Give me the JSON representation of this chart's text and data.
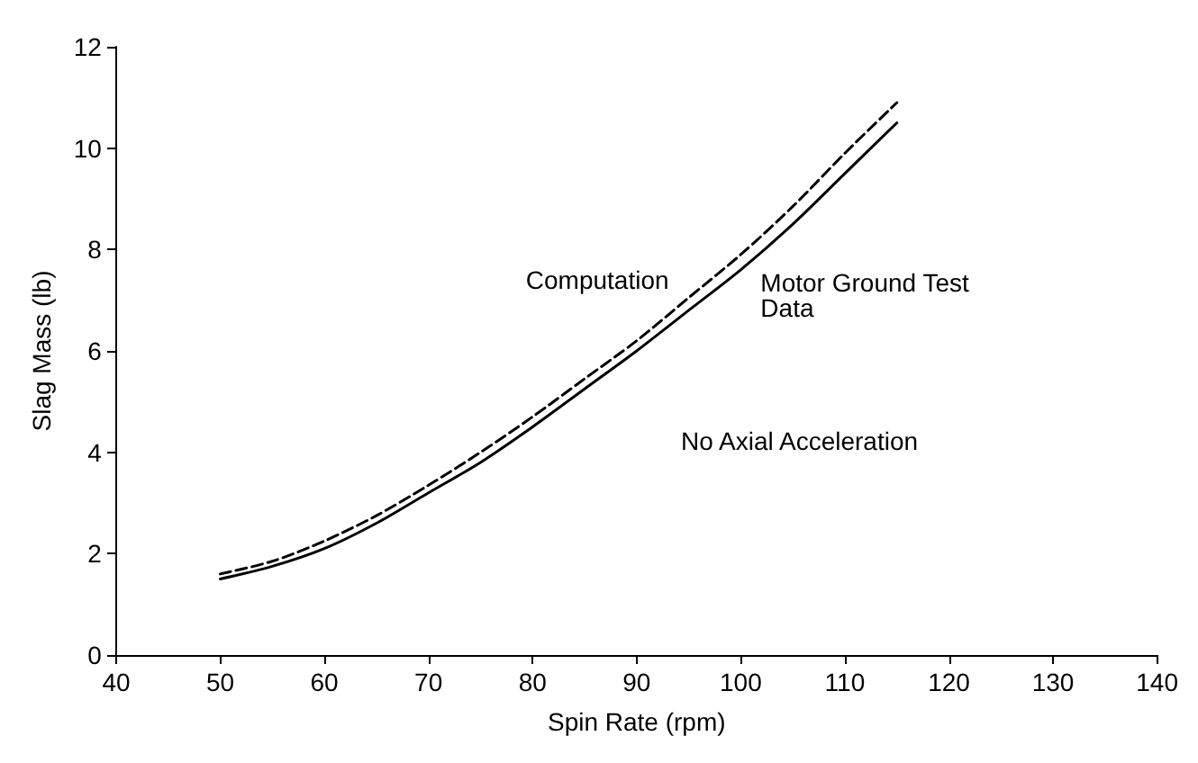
{
  "chart_data": {
    "type": "line",
    "xlabel": "Spin Rate (rpm)",
    "ylabel": "Slag Mass (lb)",
    "x": [
      50,
      55,
      60,
      65,
      70,
      75,
      80,
      85,
      90,
      95,
      100,
      105,
      110,
      115
    ],
    "series": [
      {
        "name": "Computation",
        "color": "#000000",
        "line_style": "dashed",
        "values": [
          1.6,
          1.85,
          2.25,
          2.75,
          3.35,
          4.0,
          4.7,
          5.45,
          6.2,
          7.05,
          7.9,
          8.85,
          9.9,
          10.9
        ]
      },
      {
        "name": "Motor Ground Test Data",
        "color": "#000000",
        "line_style": "solid",
        "values": [
          1.5,
          1.75,
          2.1,
          2.6,
          3.2,
          3.8,
          4.5,
          5.25,
          6.0,
          6.8,
          7.6,
          8.5,
          9.5,
          10.5
        ]
      }
    ],
    "xlim": [
      40,
      140
    ],
    "xticks": [
      40,
      50,
      60,
      70,
      80,
      90,
      100,
      110,
      120,
      130,
      140
    ],
    "ylim": [
      0,
      12
    ],
    "yticks": [
      0,
      2,
      4,
      6,
      8,
      10,
      12
    ],
    "annotations": [
      "No Axial Acceleration"
    ],
    "grid": false,
    "legend": false,
    "marker": "none"
  }
}
